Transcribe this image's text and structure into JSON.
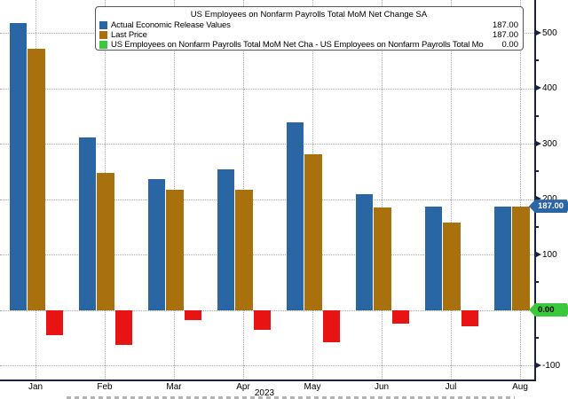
{
  "chart_data": {
    "type": "bar",
    "title": "US Employees on Nonfarm Payrolls Total MoM Net Change SA",
    "categories": [
      "Jan",
      "Feb",
      "Mar",
      "Apr",
      "May",
      "Jun",
      "Jul",
      "Aug"
    ],
    "x_axis_year": "2023",
    "grid": "dotted",
    "legend_position": "top",
    "ylim": [
      -130,
      560
    ],
    "yticks_major": [
      500,
      400,
      300,
      200,
      100,
      -100
    ],
    "yticks_minor": [
      450,
      350,
      250,
      150,
      50,
      -50
    ],
    "gridline_values": [
      500,
      400,
      300,
      200,
      100,
      0,
      -100
    ],
    "series": [
      {
        "name": "Actual Economic Release Values",
        "color": "#2B66A4",
        "current_label": "187.00",
        "values": [
          517,
          311,
          236,
          253,
          339,
          209,
          187,
          187
        ]
      },
      {
        "name": "Last Price",
        "color": "#A9710D",
        "current_label": "187.00",
        "values": [
          472,
          248,
          217,
          217,
          281,
          185,
          157,
          187
        ]
      },
      {
        "name": "US Employees on Nonfarm Payrolls Total MoM Net Cha - US Employees on Nonfarm Payrolls Total Mo",
        "color": "#3CC83C",
        "bar_color_negative": "#E81414",
        "current_label": "0.00",
        "values": [
          -45,
          -63,
          -19,
          -36,
          -58,
          -24,
          -30,
          0
        ]
      }
    ],
    "axis_tags": [
      {
        "label": "187.00",
        "value": 187,
        "bg": "#2B66A4",
        "fg": "#FFFFFF"
      },
      {
        "label": "0.00",
        "value": 0,
        "bg": "#3CC83C",
        "fg": "#000000"
      }
    ],
    "axis_color": "#1A2440",
    "gridline_color": "#A9A9A9"
  }
}
